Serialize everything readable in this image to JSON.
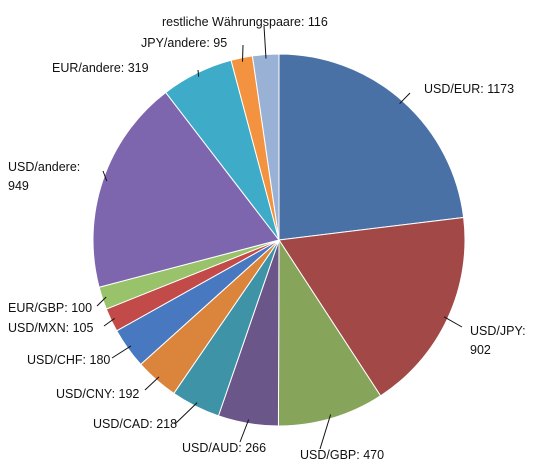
{
  "chart_data": {
    "type": "pie",
    "title": "",
    "unit": "",
    "slices": [
      {
        "label": "USD/EUR",
        "value": 1173,
        "color": "#4A71A6"
      },
      {
        "label": "USD/JPY",
        "value": 902,
        "color": "#A24846"
      },
      {
        "label": "USD/GBP",
        "value": 470,
        "color": "#86A45A"
      },
      {
        "label": "USD/AUD",
        "value": 266,
        "color": "#6B5689"
      },
      {
        "label": "USD/CAD",
        "value": 218,
        "color": "#3F93A7"
      },
      {
        "label": "USD/CNY",
        "value": 192,
        "color": "#DB843C"
      },
      {
        "label": "USD/CHF",
        "value": 180,
        "color": "#4778C0"
      },
      {
        "label": "USD/MXN",
        "value": 105,
        "color": "#C24B49"
      },
      {
        "label": "EUR/GBP",
        "value": 100,
        "color": "#98C36A"
      },
      {
        "label": "USD/andere",
        "value": 949,
        "color": "#7E66AE"
      },
      {
        "label": "EUR/andere",
        "value": 319,
        "color": "#3EACC8"
      },
      {
        "label": "JPY/andere",
        "value": 95,
        "color": "#F3933F"
      },
      {
        "label": "restliche Währungspaare",
        "value": 116,
        "color": "#9AB1D6"
      }
    ]
  }
}
